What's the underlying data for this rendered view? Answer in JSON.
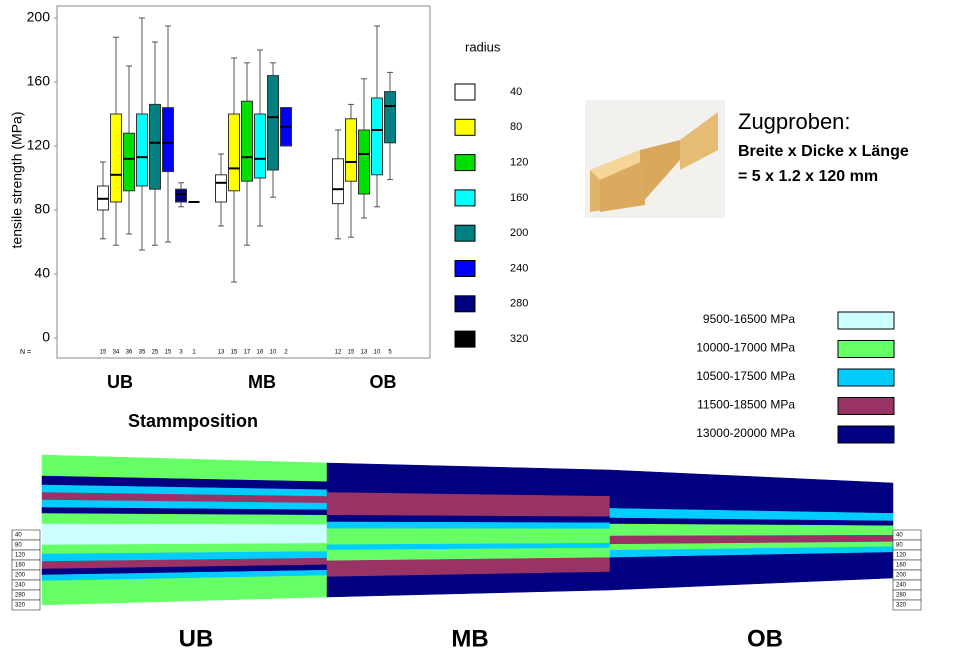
{
  "chart_data": {
    "type": "box",
    "y_label": "tensile strength (MPa)",
    "x_label": "Stammposition",
    "categories": [
      "UB",
      "MB",
      "OB"
    ],
    "legend_title": "radius",
    "n_label": "N =",
    "ylim": [
      0,
      200
    ],
    "yticks": [
      0,
      40,
      80,
      120,
      160,
      200
    ],
    "series": [
      {
        "name": "40",
        "color": "#ffffff",
        "values": [
          {
            "whislo": 62,
            "q1": 80,
            "med": 87,
            "q3": 95,
            "whishi": 110,
            "n": 15
          },
          {
            "whislo": 70,
            "q1": 85,
            "med": 97,
            "q3": 102,
            "whishi": 115,
            "n": 13
          },
          {
            "whislo": 62,
            "q1": 84,
            "med": 93,
            "q3": 112,
            "whishi": 130,
            "n": 12
          }
        ]
      },
      {
        "name": "80",
        "color": "#ffff00",
        "values": [
          {
            "whislo": 58,
            "q1": 85,
            "med": 102,
            "q3": 140,
            "whishi": 188,
            "n": 34
          },
          {
            "whislo": 35,
            "q1": 92,
            "med": 106,
            "q3": 140,
            "whishi": 175,
            "n": 15
          },
          {
            "whislo": 63,
            "q1": 98,
            "med": 110,
            "q3": 137,
            "whishi": 146,
            "n": 15
          }
        ]
      },
      {
        "name": "120",
        "color": "#00e000",
        "values": [
          {
            "whislo": 65,
            "q1": 92,
            "med": 112,
            "q3": 128,
            "whishi": 170,
            "n": 36
          },
          {
            "whislo": 58,
            "q1": 98,
            "med": 113,
            "q3": 148,
            "whishi": 172,
            "n": 17
          },
          {
            "whislo": 75,
            "q1": 90,
            "med": 115,
            "q3": 130,
            "whishi": 162,
            "n": 13
          }
        ]
      },
      {
        "name": "160",
        "color": "#00ffff",
        "values": [
          {
            "whislo": 55,
            "q1": 95,
            "med": 113,
            "q3": 140,
            "whishi": 200,
            "n": 35
          },
          {
            "whislo": 70,
            "q1": 100,
            "med": 112,
            "q3": 140,
            "whishi": 180,
            "n": 16
          },
          {
            "whislo": 82,
            "q1": 102,
            "med": 130,
            "q3": 150,
            "whishi": 195,
            "n": 10
          }
        ]
      },
      {
        "name": "200",
        "color": "#008080",
        "values": [
          {
            "whislo": 58,
            "q1": 93,
            "med": 122,
            "q3": 146,
            "whishi": 185,
            "n": 25
          },
          {
            "whislo": 88,
            "q1": 105,
            "med": 138,
            "q3": 164,
            "whishi": 172,
            "n": 10
          },
          {
            "whislo": 99,
            "q1": 122,
            "med": 145,
            "q3": 154,
            "whishi": 166,
            "n": 5
          }
        ]
      },
      {
        "name": "240",
        "color": "#0000ff",
        "values": [
          {
            "whislo": 60,
            "q1": 104,
            "med": 122,
            "q3": 144,
            "whishi": 195,
            "n": 15
          },
          {
            "whislo": 120,
            "q1": 120,
            "med": 132,
            "q3": 144,
            "whishi": 144,
            "n": 2
          },
          null
        ]
      },
      {
        "name": "280",
        "color": "#000080",
        "values": [
          {
            "whislo": 82,
            "q1": 85,
            "med": 90,
            "q3": 93,
            "whishi": 97,
            "n": 3
          },
          null,
          null
        ]
      },
      {
        "name": "320",
        "color": "#000000",
        "values": [
          {
            "med": 85,
            "n": 1
          },
          null,
          null
        ]
      }
    ]
  },
  "specimen": {
    "title": "Zugproben:",
    "line1": "Breite x Dicke x Länge",
    "line2": "= 5 x 1.2 x 120 mm"
  },
  "modulus_legend": [
    {
      "label": "9500-16500 MPa",
      "color": "#ccffff"
    },
    {
      "label": "10000-17000 MPa",
      "color": "#66ff66"
    },
    {
      "label": "10500-17500 MPa",
      "color": "#00ccff"
    },
    {
      "label": "11500-18500 MPa",
      "color": "#993366"
    },
    {
      "label": "13000-20000 MPa",
      "color": "#000080"
    }
  ],
  "band_labels": [
    "UB",
    "MB",
    "OB"
  ]
}
